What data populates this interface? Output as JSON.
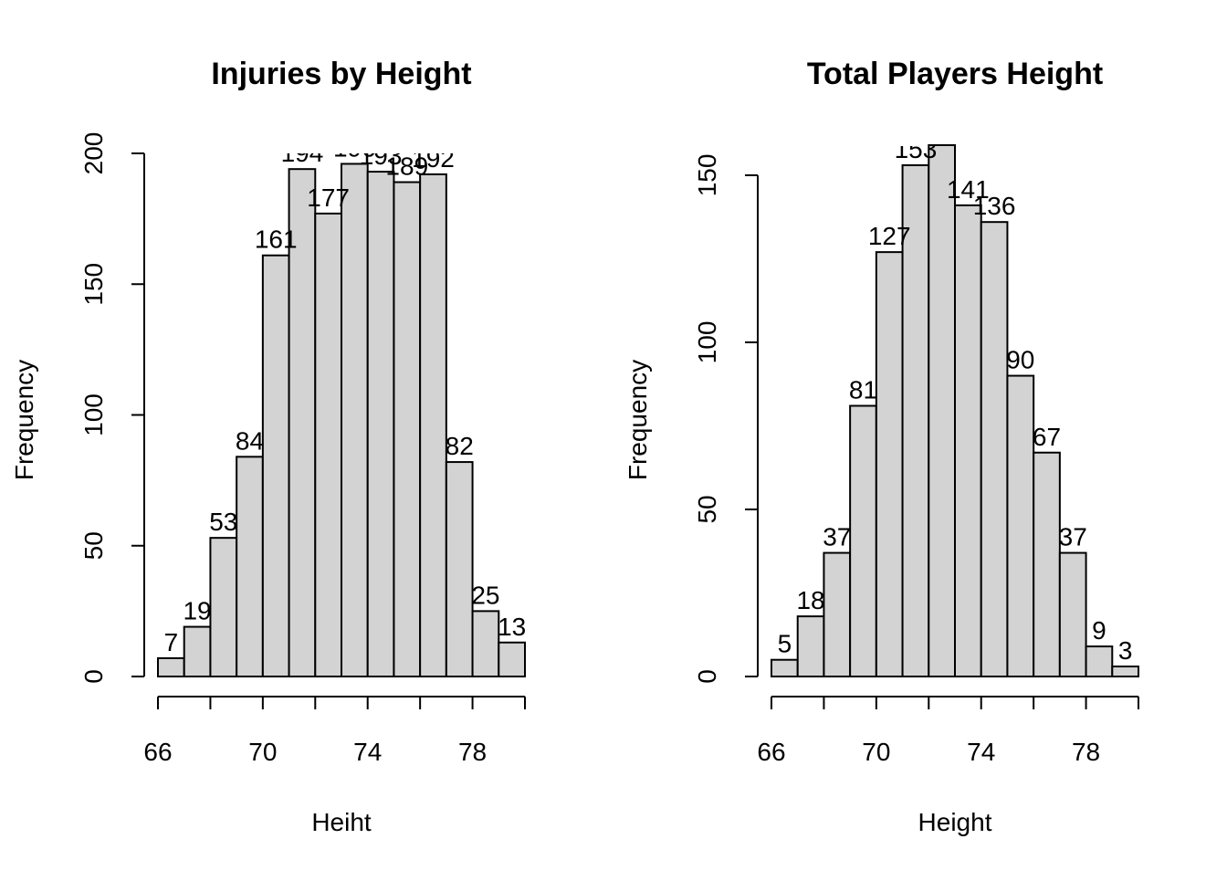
{
  "chart_data": [
    {
      "type": "bar",
      "title": "Injuries by Height",
      "xlabel": "Heiht",
      "ylabel": "Frequency",
      "bin_edges": [
        66,
        67,
        68,
        69,
        70,
        71,
        72,
        73,
        74,
        75,
        76,
        77,
        78,
        79,
        80
      ],
      "values": [
        7,
        19,
        53,
        84,
        161,
        194,
        177,
        196,
        193,
        189,
        192,
        82,
        25,
        13
      ],
      "xticks": [
        66,
        70,
        74,
        78
      ],
      "yticks": [
        0,
        50,
        100,
        150,
        200
      ],
      "xlim": [
        66,
        80
      ],
      "ylim": [
        0,
        200
      ],
      "grid": false,
      "legend": "none"
    },
    {
      "type": "bar",
      "title": "Total Players Height",
      "xlabel": "Height",
      "ylabel": "Frequency",
      "bin_edges": [
        66,
        67,
        68,
        69,
        70,
        71,
        72,
        73,
        74,
        75,
        76,
        77,
        78,
        79,
        80
      ],
      "values": [
        5,
        18,
        37,
        81,
        127,
        153,
        159,
        141,
        136,
        90,
        67,
        37,
        9,
        3
      ],
      "xticks": [
        66,
        70,
        74,
        78
      ],
      "yticks": [
        0,
        50,
        100,
        150
      ],
      "xlim": [
        66,
        80
      ],
      "ylim": [
        0,
        159
      ],
      "grid": false,
      "legend": "none"
    }
  ]
}
